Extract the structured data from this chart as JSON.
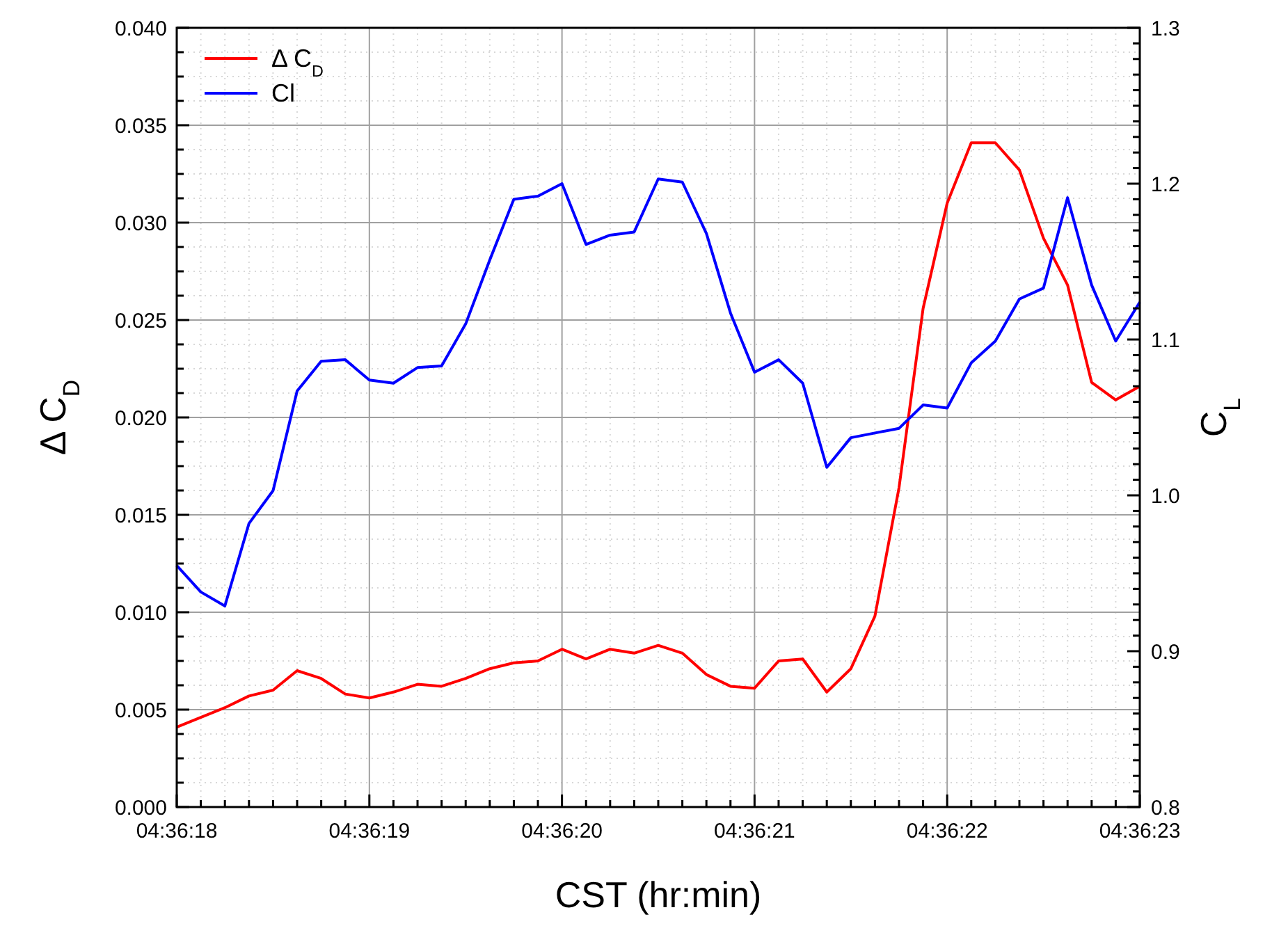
{
  "chart_data": {
    "type": "line",
    "xlabel": "CST (hr:min)",
    "ylabel": "Δ C$_{D}$",
    "y2label": "C$_{L}$",
    "x": [
      4.605,
      4.6050347,
      4.6050694,
      4.6051042,
      4.6051389,
      4.6051736,
      4.6052083,
      4.6052431,
      4.6052778,
      4.6053125,
      4.6053472,
      4.6053819,
      4.6054167,
      4.6054514,
      4.6054861,
      4.6055208,
      4.6055556,
      4.6055903,
      4.605625,
      4.6056597,
      4.6056944,
      4.6057292,
      4.6057639,
      4.6057986,
      4.6058333,
      4.6058681,
      4.6059028,
      4.6059375,
      4.6059722,
      4.6060069,
      4.6060417,
      4.6060764,
      4.6061111,
      4.6061458,
      4.6061806,
      4.6062153,
      4.60625,
      4.6062847,
      4.6063194,
      4.6063542,
      4.6063889
    ],
    "series": [
      {
        "name": "Δ C$_{D}$",
        "color": "#ff0000",
        "values": [
          0.0041,
          0.0046,
          0.0051,
          0.0057,
          0.006,
          0.007,
          0.0066,
          0.0058,
          0.0056,
          0.0059,
          0.0063,
          0.0062,
          0.0066,
          0.0071,
          0.0074,
          0.0075,
          0.0081,
          0.0076,
          0.0081,
          0.0079,
          0.0083,
          0.0079,
          0.0068,
          0.0062,
          0.0061,
          0.0075,
          0.0076,
          0.0059,
          0.0071,
          0.0098,
          0.0164,
          0.0256,
          0.031,
          0.0341,
          0.0341,
          0.0327,
          0.0292,
          0.0268,
          0.0218,
          0.0209,
          0.0216
        ]
      },
      {
        "name": "Cl",
        "color": "#0000ff",
        "axis": "y2",
        "values": [
          0.955,
          0.938,
          0.929,
          0.982,
          1.003,
          1.067,
          1.086,
          1.087,
          1.074,
          1.072,
          1.082,
          1.083,
          1.11,
          1.151,
          1.19,
          1.192,
          1.2,
          1.161,
          1.167,
          1.169,
          1.203,
          1.201,
          1.168,
          1.117,
          1.079,
          1.087,
          1.072,
          1.018,
          1.037,
          1.04,
          1.043,
          1.058,
          1.056,
          1.085,
          1.099,
          1.126,
          1.133,
          1.191,
          1.135,
          1.099,
          1.124
        ]
      }
    ],
    "xlim": [
      4.605,
      4.6063889
    ],
    "xticks": [
      {
        "value": 4.605,
        "label": "04:36:18"
      },
      {
        "value": 4.6052778,
        "label": "04:36:19"
      },
      {
        "value": 4.6055556,
        "label": "04:36:20"
      },
      {
        "value": 4.6058333,
        "label": "04:36:21"
      },
      {
        "value": 4.6061111,
        "label": "04:36:22"
      },
      {
        "value": 4.6063889,
        "label": "04:36:23"
      }
    ],
    "ylim": [
      0,
      0.04
    ],
    "yticks": [
      {
        "value": 0,
        "label": "0.000"
      },
      {
        "value": 0.005,
        "label": "0.005"
      },
      {
        "value": 0.01,
        "label": "0.010"
      },
      {
        "value": 0.015,
        "label": "0.015"
      },
      {
        "value": 0.02,
        "label": "0.020"
      },
      {
        "value": 0.025,
        "label": "0.025"
      },
      {
        "value": 0.03,
        "label": "0.030"
      },
      {
        "value": 0.035,
        "label": "0.035"
      },
      {
        "value": 0.04,
        "label": "0.040"
      }
    ],
    "y2lim": [
      0.8,
      1.3
    ],
    "y2ticks": [
      0.8,
      0.9,
      {
        "value": 1,
        "label": "1.0"
      },
      1.1,
      1.2,
      1.3
    ],
    "grid": true,
    "legend": "top left",
    "marker": "none",
    "line_style": "solid"
  }
}
